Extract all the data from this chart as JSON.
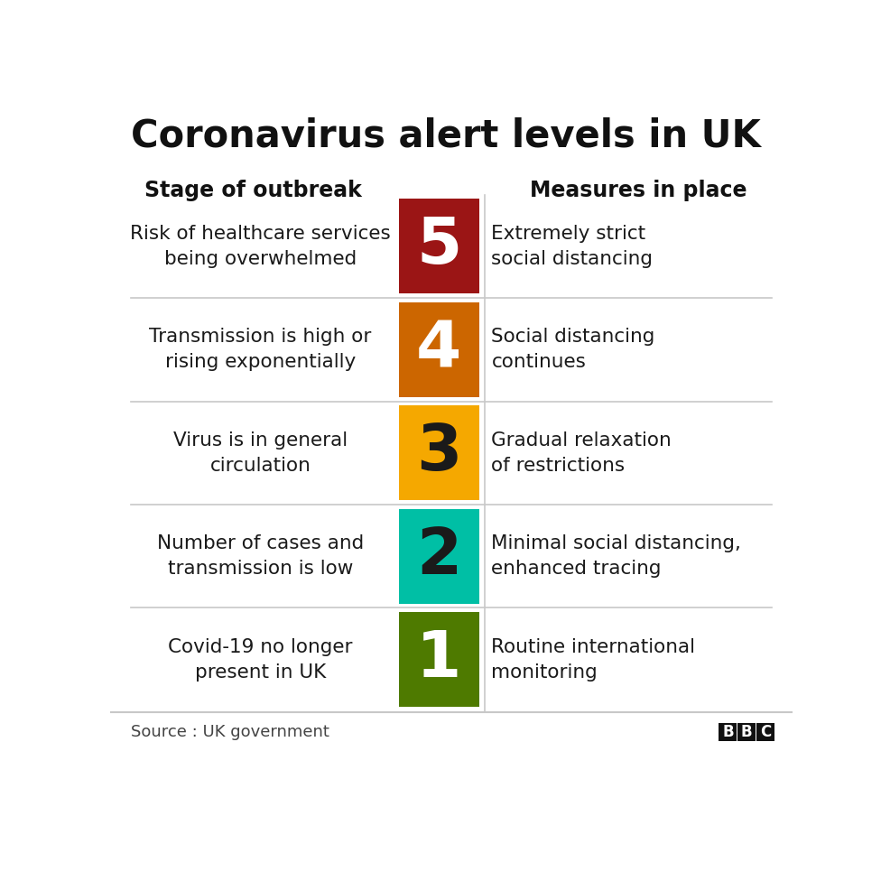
{
  "title": "Coronavirus alert levels in UK",
  "col_header_left": "Stage of outbreak",
  "col_header_right": "Measures in place",
  "source": "Source : UK government",
  "bbc_text": "BBC",
  "levels": [
    {
      "number": "5",
      "color": "#9B1515",
      "text_color": "#ffffff",
      "stage": "Risk of healthcare services\nbeing overwhelmed",
      "measures": "Extremely strict\nsocial distancing"
    },
    {
      "number": "4",
      "color": "#CC6600",
      "text_color": "#ffffff",
      "stage": "Transmission is high or\nrising exponentially",
      "measures": "Social distancing\ncontinues"
    },
    {
      "number": "3",
      "color": "#F5A800",
      "text_color": "#1a1a1a",
      "stage": "Virus is in general\ncirculation",
      "measures": "Gradual relaxation\nof restrictions"
    },
    {
      "number": "2",
      "color": "#00BFA5",
      "text_color": "#1a1a1a",
      "stage": "Number of cases and\ntransmission is low",
      "measures": "Minimal social distancing,\nenhanced tracing"
    },
    {
      "number": "1",
      "color": "#4E7A00",
      "text_color": "#ffffff",
      "stage": "Covid-19 no longer\npresent in UK",
      "measures": "Routine international\nmonitoring"
    }
  ],
  "bg_color": "#ffffff",
  "divider_color": "#c8c8c8",
  "title_fontsize": 30,
  "header_fontsize": 17,
  "level_number_fontsize": 52,
  "stage_fontsize": 15.5,
  "measures_fontsize": 15.5,
  "source_fontsize": 13
}
